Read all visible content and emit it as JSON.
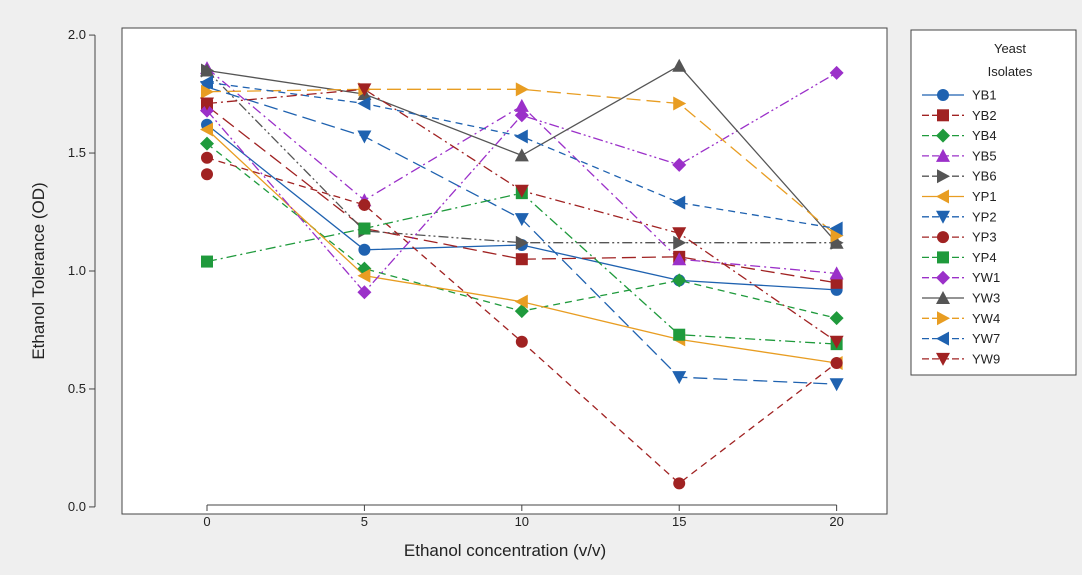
{
  "chart_data": {
    "type": "line",
    "title": "",
    "xlabel": "Ethanol concentration (v/v)",
    "ylabel": "Ethanol Tolerance (OD)",
    "x": [
      0,
      5,
      10,
      15,
      20
    ],
    "xlim": [
      -2.7,
      21.6
    ],
    "ylim": [
      -0.03,
      2.03
    ],
    "xticks": [
      0,
      5,
      10,
      15,
      20
    ],
    "yticks": [
      0.0,
      0.5,
      1.0,
      1.5,
      2.0
    ],
    "ytick_labels": [
      "0.0",
      "0.5",
      "1.0",
      "1.5",
      "2.0"
    ],
    "grid": false,
    "legend_title": [
      "Yeast",
      "Isolates"
    ],
    "legend_position": "right",
    "series": [
      {
        "name": "YB1",
        "values": [
          1.62,
          1.09,
          1.11,
          0.96,
          0.92
        ],
        "color": "#1f62b0",
        "marker": "circle",
        "dash": "solid"
      },
      {
        "name": "YB2",
        "values": [
          1.7,
          1.18,
          1.05,
          1.06,
          0.95
        ],
        "color": "#a02222",
        "marker": "square",
        "dash": "longdash"
      },
      {
        "name": "YB4",
        "values": [
          1.54,
          1.01,
          0.83,
          0.96,
          0.8
        ],
        "color": "#1f9a3c",
        "marker": "diamond",
        "dash": "dash"
      },
      {
        "name": "YB5",
        "values": [
          1.86,
          1.3,
          1.7,
          1.05,
          0.99
        ],
        "color": "#9b30c9",
        "marker": "triangle-up",
        "dash": "dashdot"
      },
      {
        "name": "YB6",
        "values": [
          1.85,
          1.17,
          1.12,
          1.12,
          1.12
        ],
        "color": "#555555",
        "marker": "triangle-right",
        "dash": "dashdotdot"
      },
      {
        "name": "YP1",
        "values": [
          1.6,
          0.98,
          0.87,
          0.71,
          0.61
        ],
        "color": "#e89d22",
        "marker": "triangle-left",
        "dash": "solid"
      },
      {
        "name": "YP2",
        "values": [
          1.78,
          1.57,
          1.22,
          0.55,
          0.52
        ],
        "color": "#1f62b0",
        "marker": "triangle-down",
        "dash": "longdash"
      },
      {
        "name": "YP3",
        "values": [
          1.48,
          1.28,
          0.7,
          0.1,
          0.61
        ],
        "color": "#a02222",
        "marker": "circle",
        "dash": "dash"
      },
      {
        "name": "YP4",
        "values": [
          1.04,
          1.18,
          1.33,
          0.73,
          0.69
        ],
        "color": "#1f9a3c",
        "marker": "square",
        "dash": "dashdot"
      },
      {
        "name": "YW1",
        "values": [
          1.68,
          0.91,
          1.66,
          1.45,
          1.84
        ],
        "color": "#9b30c9",
        "marker": "diamond",
        "dash": "dashdotdot"
      },
      {
        "name": "YW3",
        "values": [
          1.85,
          1.75,
          1.49,
          1.87,
          1.12
        ],
        "color": "#555555",
        "marker": "triangle-up",
        "dash": "solid"
      },
      {
        "name": "YW4",
        "values": [
          1.76,
          1.77,
          1.77,
          1.71,
          1.15
        ],
        "color": "#e89d22",
        "marker": "triangle-right",
        "dash": "longdash"
      },
      {
        "name": "YW7",
        "values": [
          1.8,
          1.71,
          1.57,
          1.29,
          1.18
        ],
        "color": "#1f62b0",
        "marker": "triangle-left",
        "dash": "dash"
      },
      {
        "name": "YW9",
        "values": [
          1.71,
          1.77,
          1.34,
          1.16,
          0.7
        ],
        "color": "#a02222",
        "marker": "triangle-down",
        "dash": "dashdot"
      }
    ],
    "extra_points": [
      {
        "series": "YP3",
        "x": 0,
        "y": 1.41
      }
    ],
    "colors": {
      "background": "#efefef",
      "plot_area": "#ffffff",
      "axis": "#444444"
    }
  }
}
